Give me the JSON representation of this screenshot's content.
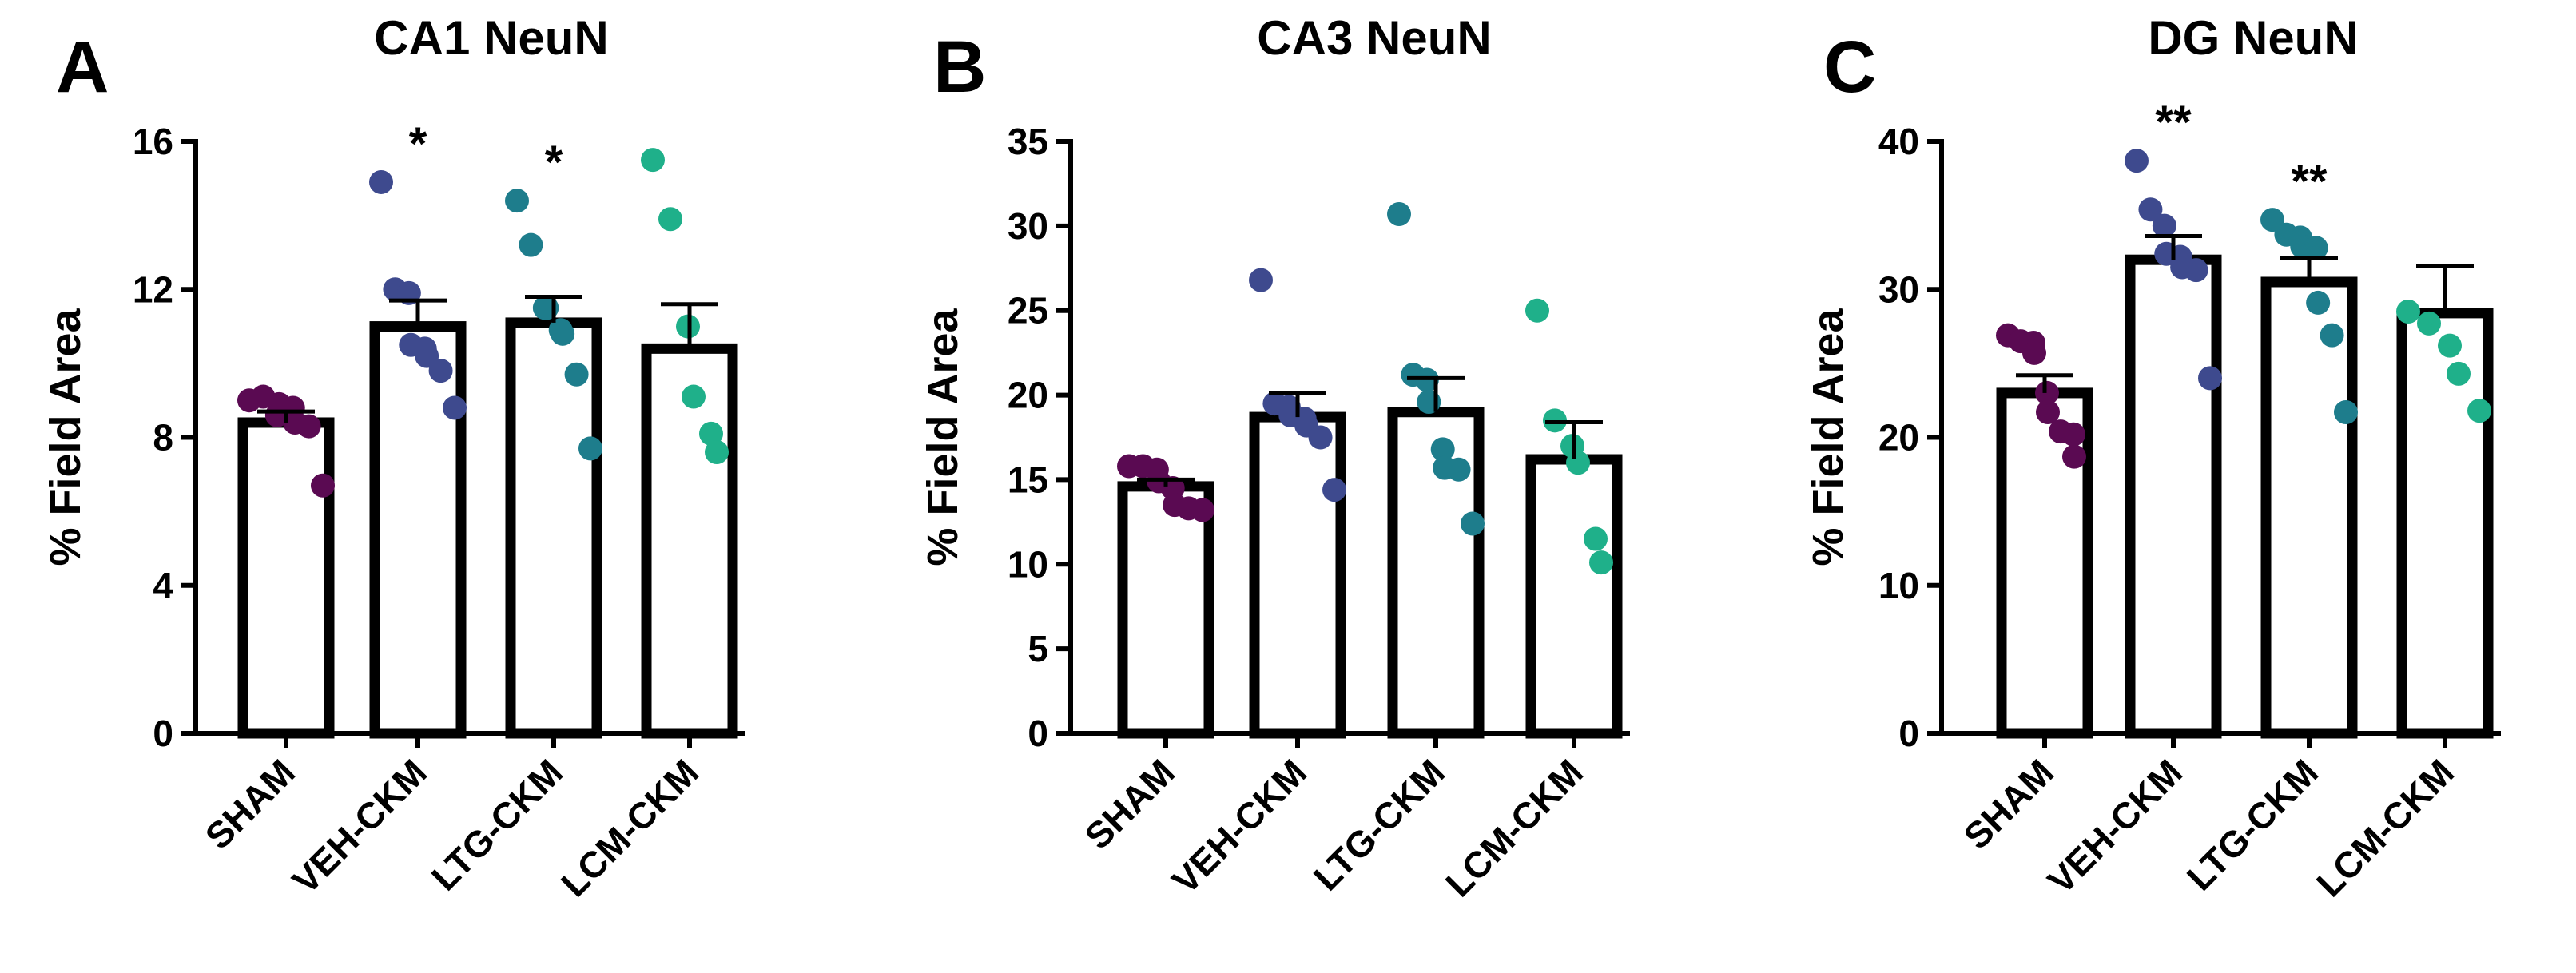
{
  "chart_data": [
    {
      "type": "bar",
      "panel_label": "A",
      "title": "CA1 NeuN",
      "ylabel": "% Field Area",
      "xlabel": "",
      "ylim": [
        0,
        16
      ],
      "yticks": [
        0,
        4,
        8,
        12,
        16
      ],
      "categories": [
        "SHAM",
        "VEH-CKM",
        "LTG-CKM",
        "LCM-CKM"
      ],
      "colors": [
        "#5a0a52",
        "#3e4a8e",
        "#1e7d8c",
        "#1fb08a"
      ],
      "values": [
        8.4,
        11.0,
        11.1,
        10.4
      ],
      "sem": [
        0.3,
        0.7,
        0.7,
        1.2
      ],
      "significance": [
        "",
        "*",
        "*",
        ""
      ],
      "points": [
        [
          9.0,
          9.1,
          8.6,
          8.9,
          8.8,
          8.4,
          8.3,
          6.7
        ],
        [
          14.9,
          12.0,
          11.9,
          10.5,
          10.4,
          10.2,
          9.8,
          8.8
        ],
        [
          14.4,
          13.2,
          11.5,
          11.5,
          10.9,
          10.8,
          9.7,
          7.7
        ],
        [
          15.5,
          13.9,
          11.0,
          9.1,
          8.1,
          7.6
        ]
      ]
    },
    {
      "type": "bar",
      "panel_label": "B",
      "title": "CA3 NeuN",
      "ylabel": "% Field Area",
      "xlabel": "",
      "ylim": [
        0,
        35
      ],
      "yticks": [
        0,
        5,
        10,
        15,
        20,
        25,
        30,
        35
      ],
      "categories": [
        "SHAM",
        "VEH-CKM",
        "LTG-CKM",
        "LCM-CKM"
      ],
      "colors": [
        "#5a0a52",
        "#3e4a8e",
        "#1e7d8c",
        "#1fb08a"
      ],
      "values": [
        14.6,
        18.7,
        19.0,
        16.2
      ],
      "sem": [
        0.4,
        1.4,
        2.0,
        2.2
      ],
      "significance": [
        "",
        "",
        "",
        ""
      ],
      "points": [
        [
          15.8,
          15.8,
          15.6,
          14.9,
          14.5,
          13.5,
          13.3,
          13.2
        ],
        [
          26.8,
          19.5,
          19.3,
          18.8,
          18.6,
          18.2,
          17.5,
          14.4
        ],
        [
          30.7,
          21.2,
          20.9,
          19.6,
          16.8,
          15.7,
          15.6,
          12.4
        ],
        [
          25.0,
          18.5,
          17.0,
          16.0,
          11.5,
          10.1
        ]
      ]
    },
    {
      "type": "bar",
      "panel_label": "C",
      "title": "DG NeuN",
      "ylabel": "% Field Area",
      "xlabel": "",
      "ylim": [
        0,
        40
      ],
      "yticks": [
        0,
        10,
        20,
        30,
        40
      ],
      "categories": [
        "SHAM",
        "VEH-CKM",
        "LTG-CKM",
        "LCM-CKM"
      ],
      "colors": [
        "#5a0a52",
        "#3e4a8e",
        "#1e7d8c",
        "#1fb08a"
      ],
      "values": [
        23.0,
        32.0,
        30.5,
        28.4
      ],
      "sem": [
        1.2,
        1.6,
        1.6,
        3.2
      ],
      "significance": [
        "",
        "**",
        "**",
        ""
      ],
      "points": [
        [
          26.9,
          26.5,
          26.4,
          25.7,
          23.0,
          21.7,
          20.4,
          20.2,
          18.7
        ],
        [
          38.7,
          35.4,
          34.3,
          32.4,
          32.2,
          31.5,
          31.3,
          24.0
        ],
        [
          34.7,
          33.7,
          33.5,
          32.9,
          32.8,
          29.1,
          26.9,
          21.7
        ],
        [
          28.5,
          27.7,
          26.2,
          24.3,
          21.8
        ]
      ]
    }
  ]
}
